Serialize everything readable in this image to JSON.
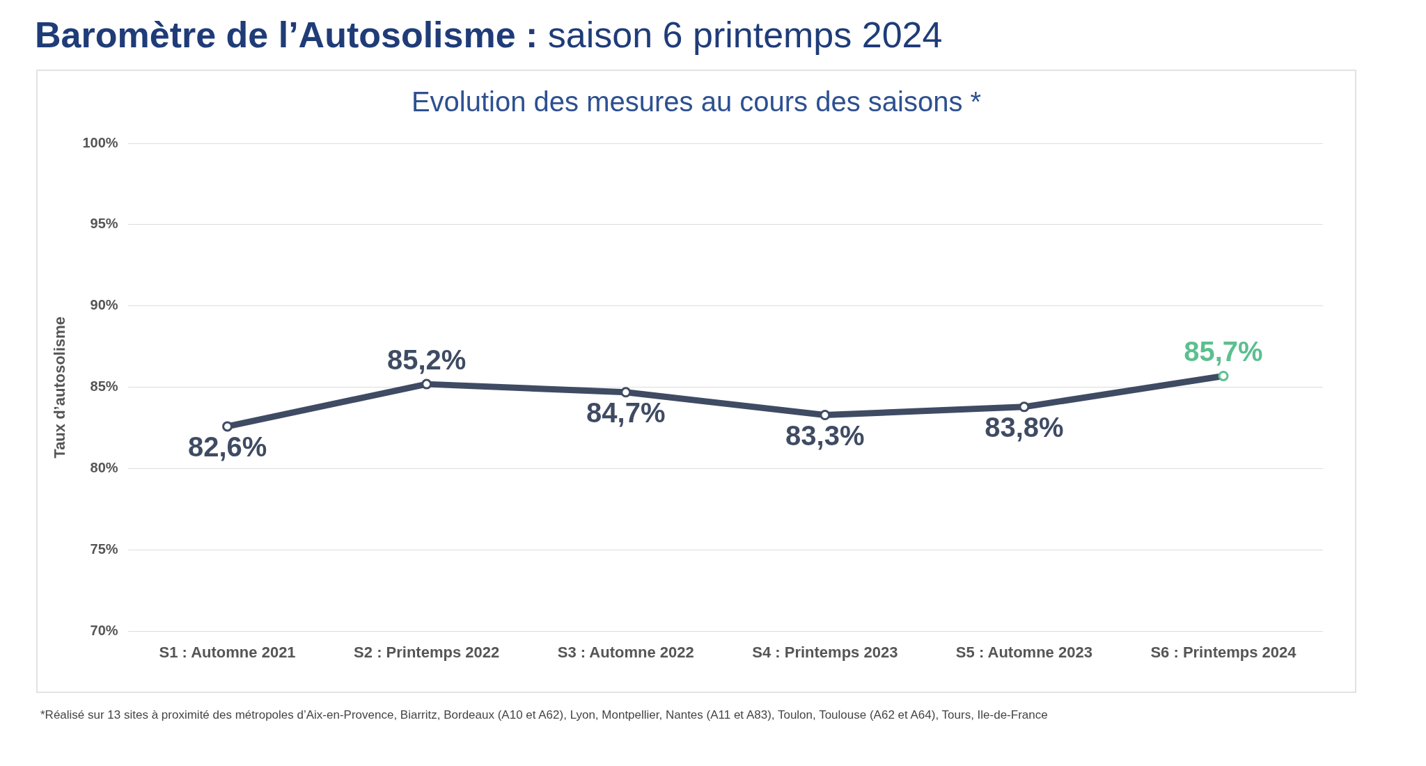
{
  "chart_data": {
    "type": "line",
    "title": "Baromètre de l’Autosolisme :",
    "subtitle": "saison 6 printemps 2024",
    "annotations": [
      "Evolution des mesures au cours des saisons *",
      "*Réalisé sur 13 sites à proximité des métropoles d’Aix-en-Provence, Biarritz, Bordeaux (A10 et A62), Lyon, Montpellier, Nantes (A11 et A83), Toulon, Toulouse (A62 et A64), Tours,  Ile-de-France"
    ],
    "ylabel": "Taux d’autosolisme",
    "categories": [
      "S1 : Automne 2021",
      "S2 : Printemps 2022",
      "S3 : Automne 2022",
      "S4 : Printemps 2023",
      "S5 : Automne 2023",
      "S6 : Printemps 2024"
    ],
    "series": [
      {
        "color": "#3f4b63",
        "values": [
          82.6,
          85.2,
          84.7,
          83.3,
          83.8,
          85.7
        ],
        "colors": [
          "#3f4b63",
          "#3f4b63",
          "#3f4b63",
          "#3f4b63",
          "#3f4b63",
          "#5cbf8f"
        ],
        "value_labels": [
          "82,6%",
          "85,2%",
          "84,7%",
          "83,3%",
          "83,8%",
          "85,7%"
        ]
      }
    ],
    "ylim": [
      70,
      100
    ],
    "yticks": [
      {
        "value": 70,
        "label": "70%"
      },
      {
        "value": 75,
        "label": "75%"
      },
      {
        "value": 80,
        "label": "80%"
      },
      {
        "value": 85,
        "label": "85%"
      },
      {
        "value": 90,
        "label": "90%"
      },
      {
        "value": 95,
        "label": "95%"
      },
      {
        "value": 100,
        "label": "100%"
      }
    ],
    "grid": "y",
    "legend": false,
    "marker": "circle",
    "line_style": "solid"
  }
}
